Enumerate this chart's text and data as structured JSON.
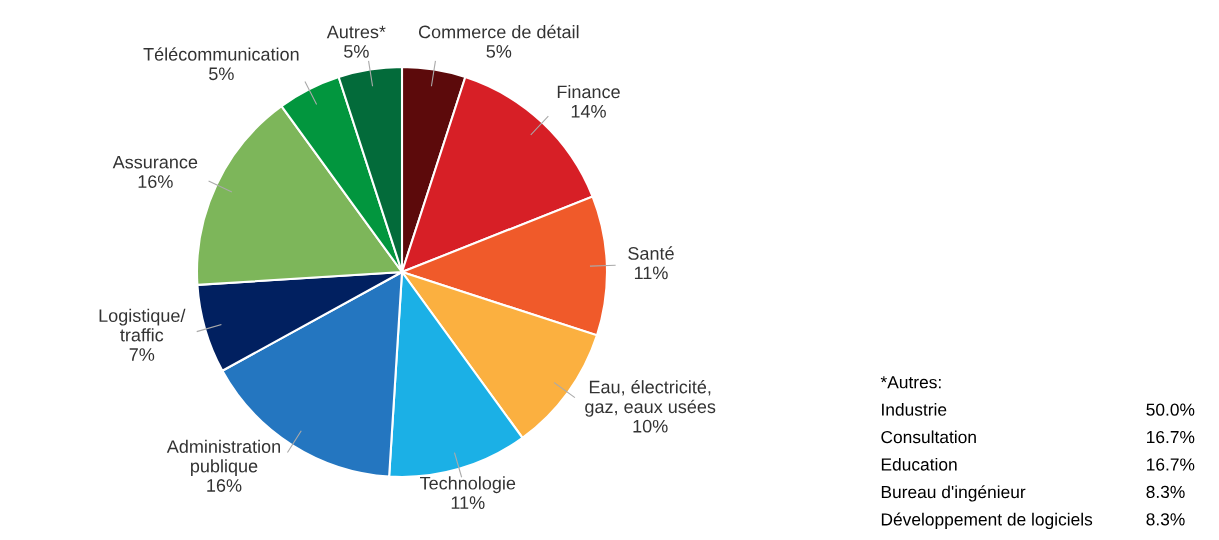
{
  "chart_data": [
    {
      "type": "pie",
      "categories": [
        "Commerce de détail",
        "Finance",
        "Santé",
        "Eau, électricité,\ngaz, eaux usées",
        "Technologie",
        "Administration\npublique",
        "Logistique/\ntraffic",
        "Assurance",
        "Télécommunication",
        "Autres*"
      ],
      "values": [
        5,
        14,
        11,
        10,
        11,
        16,
        7,
        16,
        5,
        5
      ],
      "value_labels": [
        "5%",
        "14%",
        "11%",
        "10%",
        "11%",
        "16%",
        "7%",
        "16%",
        "5%",
        "5%"
      ],
      "colors": [
        "#5c0a0b",
        "#d71f26",
        "#f05a2a",
        "#fbb040",
        "#1bb0e6",
        "#2476c0",
        "#012060",
        "#7db65a",
        "#02963e",
        "#036b3a"
      ],
      "legend": false
    },
    {
      "type": "other",
      "title": "*Autres:",
      "categories": [
        "Industrie",
        "Consultation",
        "Education",
        "Bureau d'ingénieur",
        "Développement de logiciels"
      ],
      "value_labels": [
        "50.0%",
        "16.7%",
        "16.7%",
        "8.3%",
        "8.3%"
      ]
    }
  ]
}
